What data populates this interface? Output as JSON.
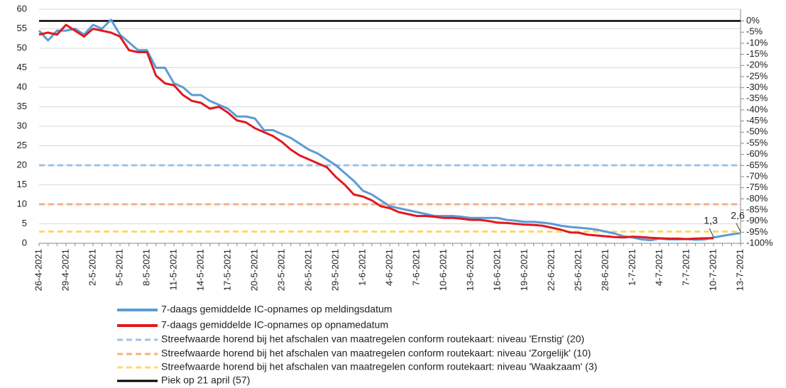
{
  "chart_data": {
    "type": "line",
    "categories": [
      "26-4-2021",
      null,
      null,
      "29-4-2021",
      null,
      null,
      "2-5-2021",
      null,
      null,
      "5-5-2021",
      null,
      null,
      "8-5-2021",
      null,
      null,
      "11-5-2021",
      null,
      null,
      "14-5-2021",
      null,
      null,
      "17-5-2021",
      null,
      null,
      "20-5-2021",
      null,
      null,
      "23-5-2021",
      null,
      null,
      "26-5-2021",
      null,
      null,
      "29-5-2021",
      null,
      null,
      "1-6-2021",
      null,
      null,
      "4-6-2021",
      null,
      null,
      "7-6-2021",
      null,
      null,
      "10-6-2021",
      null,
      null,
      "13-6-2021",
      null,
      null,
      "16-6-2021",
      null,
      null,
      "19-6-2021",
      null,
      null,
      "22-6-2021",
      null,
      null,
      "25-6-2021",
      null,
      null,
      "28-6-2021",
      null,
      null,
      "1-7-2021",
      null,
      null,
      "4-7-2021",
      null,
      null,
      "7-7-2021",
      null,
      null,
      "10-7-2021",
      null,
      null,
      "13-7-2021"
    ],
    "series": [
      {
        "name": "7-daags gemiddelde IC-opnames op meldingsdatum",
        "color": "#5b9bd5",
        "values": [
          54.5,
          52,
          54.5,
          54.5,
          55,
          53.5,
          56,
          55,
          57.3,
          53.5,
          51.5,
          49.5,
          49.5,
          45,
          45,
          41,
          40,
          38,
          38,
          36.5,
          35.5,
          34.5,
          32.5,
          32.5,
          32,
          29,
          29,
          28,
          27,
          25.5,
          24,
          23,
          21.5,
          20,
          18,
          16,
          13.5,
          12.5,
          11,
          9.5,
          9,
          8.5,
          8,
          7.5,
          7,
          7,
          7,
          6.8,
          6.5,
          6.5,
          6.5,
          6.5,
          6,
          5.8,
          5.5,
          5.5,
          5.3,
          5,
          4.5,
          4.2,
          4,
          3.8,
          3.5,
          3,
          2.5,
          1.8,
          1.5,
          1,
          0.8,
          1.2,
          1,
          1,
          1.1,
          0.9,
          1,
          1.5,
          1.9,
          2.3,
          2.6
        ],
        "value_labels": [
          null,
          null,
          null,
          null,
          null,
          null,
          null,
          null,
          null,
          null,
          null,
          null,
          null,
          null,
          null,
          null,
          null,
          null,
          null,
          null,
          null,
          null,
          null,
          null,
          null,
          null,
          null,
          null,
          null,
          null,
          null,
          null,
          null,
          null,
          null,
          null,
          null,
          null,
          null,
          null,
          null,
          null,
          null,
          null,
          null,
          null,
          null,
          null,
          null,
          null,
          null,
          null,
          null,
          null,
          null,
          null,
          null,
          null,
          null,
          null,
          null,
          null,
          null,
          null,
          null,
          null,
          null,
          null,
          null,
          null,
          null,
          null,
          null,
          null,
          null,
          null,
          null,
          null,
          "2,6"
        ]
      },
      {
        "name": "7-daags gemiddelde IC-opnames op opnamedatum",
        "color": "#e0191f",
        "values": [
          53.5,
          54,
          53.5,
          56,
          54.5,
          53,
          55,
          54.5,
          54,
          53,
          49.5,
          49,
          49,
          43,
          41,
          40.5,
          38,
          36.5,
          36,
          34.5,
          35,
          33.5,
          31.5,
          31,
          29.5,
          28.5,
          27.5,
          26,
          24,
          22.5,
          21.5,
          20.5,
          19.5,
          17,
          15,
          12.5,
          12,
          11,
          9.5,
          9,
          8,
          7.5,
          7,
          7,
          6.8,
          6.5,
          6.5,
          6.3,
          6,
          6,
          5.7,
          5.3,
          5.2,
          5,
          4.8,
          4.7,
          4.5,
          4,
          3.5,
          2.8,
          2.7,
          2.2,
          2,
          1.8,
          1.6,
          1.5,
          1.7,
          1.6,
          1.4,
          1.3,
          1.2,
          1.2,
          1.1,
          1.2,
          1.3,
          1.3,
          null,
          null,
          null
        ],
        "value_labels": [
          null,
          null,
          null,
          null,
          null,
          null,
          null,
          null,
          null,
          null,
          null,
          null,
          null,
          null,
          null,
          null,
          null,
          null,
          null,
          null,
          null,
          null,
          null,
          null,
          null,
          null,
          null,
          null,
          null,
          null,
          null,
          null,
          null,
          null,
          null,
          null,
          null,
          null,
          null,
          null,
          null,
          null,
          null,
          null,
          null,
          null,
          null,
          null,
          null,
          null,
          null,
          null,
          null,
          null,
          null,
          null,
          null,
          null,
          null,
          null,
          null,
          null,
          null,
          null,
          null,
          null,
          null,
          null,
          null,
          null,
          null,
          null,
          null,
          null,
          null,
          "1,3",
          null,
          null,
          null
        ]
      }
    ],
    "reference_lines": [
      {
        "name": "Streefwaarde horend bij het afschalen van maatregelen conform routekaart: niveau 'Ernstig' (20)",
        "value": 20,
        "color": "#9dc3e6",
        "dashed": true
      },
      {
        "name": "Streefwaarde horend bij het afschalen van maatregelen conform routekaart: niveau 'Zorgelijk' (10)",
        "value": 10,
        "color": "#f4b183",
        "dashed": true
      },
      {
        "name": "Streefwaarde horend bij het afschalen van maatregelen conform routekaart: niveau 'Waakzaam' (3)",
        "value": 3,
        "color": "#ffd966",
        "dashed": true
      },
      {
        "name": "Piek op 21 april (57)",
        "value": 57,
        "color": "#000000",
        "dashed": false
      }
    ],
    "ylim": [
      0,
      60
    ],
    "yticks": [
      0,
      5,
      10,
      15,
      20,
      25,
      30,
      35,
      40,
      45,
      50,
      55,
      60
    ],
    "y2lim": [
      -100,
      5.3
    ],
    "y2ticks": [
      {
        "value": 0,
        "label": "0%"
      },
      {
        "value": -5,
        "label": "-5%"
      },
      {
        "value": -10,
        "label": "-10%"
      },
      {
        "value": -15,
        "label": "-15%"
      },
      {
        "value": -20,
        "label": "-20%"
      },
      {
        "value": -25,
        "label": "-25%"
      },
      {
        "value": -30,
        "label": "-30%"
      },
      {
        "value": -35,
        "label": "-35%"
      },
      {
        "value": -40,
        "label": "-40%"
      },
      {
        "value": -45,
        "label": "-45%"
      },
      {
        "value": -50,
        "label": "-50%"
      },
      {
        "value": -55,
        "label": "-55%"
      },
      {
        "value": -60,
        "label": "-60%"
      },
      {
        "value": -65,
        "label": "-65%"
      },
      {
        "value": -70,
        "label": "-70%"
      },
      {
        "value": -75,
        "label": "-75%"
      },
      {
        "value": -80,
        "label": "-80%"
      },
      {
        "value": -85,
        "label": "-85%"
      },
      {
        "value": -90,
        "label": "-90%"
      },
      {
        "value": -95,
        "label": "-95%"
      },
      {
        "value": -100,
        "label": "-100%"
      }
    ],
    "grid": true
  }
}
